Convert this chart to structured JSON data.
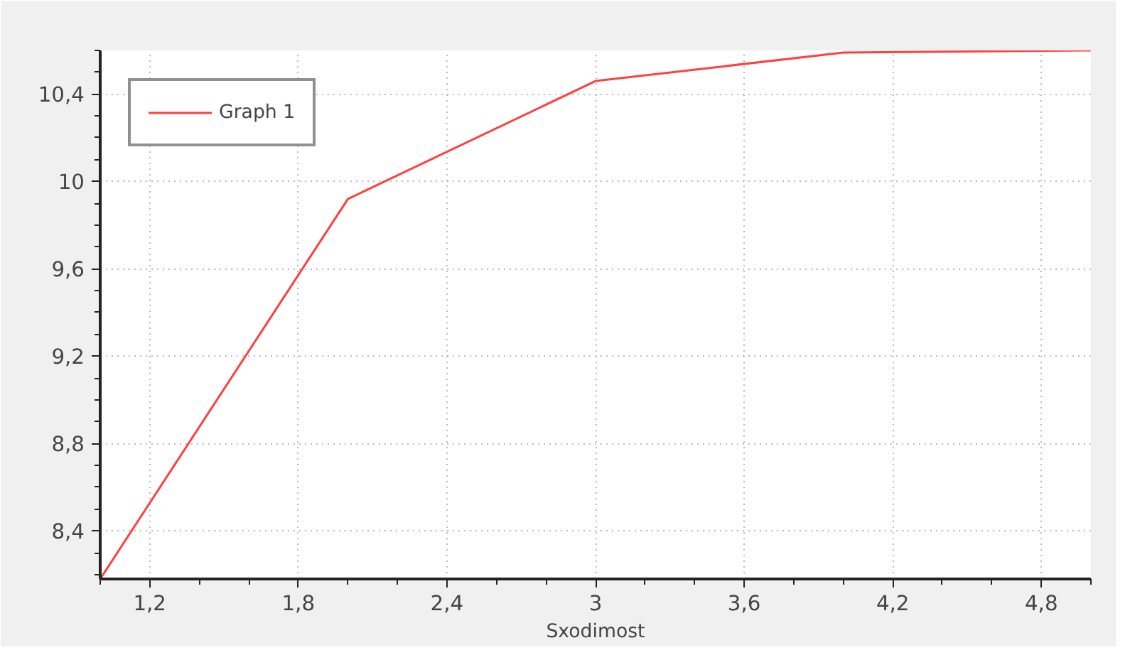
{
  "chart_data": {
    "type": "line",
    "xlabel": "Sxodimost",
    "x": [
      1,
      2,
      3,
      4,
      5
    ],
    "series": [
      {
        "name": "Graph 1",
        "color": "#ff4040",
        "values": [
          8.18,
          9.92,
          10.46,
          10.59,
          10.6
        ]
      }
    ],
    "xlim": [
      1,
      5
    ],
    "ylim": [
      8.18,
      10.6
    ],
    "xticks": [
      {
        "value": 1.2,
        "label": "1,2"
      },
      {
        "value": 1.8,
        "label": "1,8"
      },
      {
        "value": 2.4,
        "label": "2,4"
      },
      3,
      {
        "value": 3.6,
        "label": "3,6"
      },
      {
        "value": 4.2,
        "label": "4,2"
      },
      {
        "value": 4.8,
        "label": "4,8"
      }
    ],
    "yticks": [
      {
        "value": 8.4,
        "label": "8,4"
      },
      {
        "value": 8.8,
        "label": "8,8"
      },
      {
        "value": 9.2,
        "label": "9,2"
      },
      {
        "value": 9.6,
        "label": "9,6"
      },
      10,
      {
        "value": 10.4,
        "label": "10,4"
      }
    ],
    "grid": true,
    "legend": "top left",
    "line_style": "solid"
  }
}
